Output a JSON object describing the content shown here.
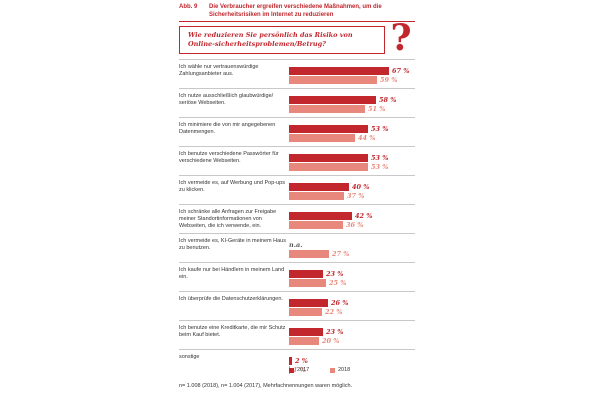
{
  "header": {
    "figure_number": "Abb. 9",
    "title": "Die Verbraucher ergreifen verschiedene Maßnahmen, um die Sicherheitsrisiken im Internet zu reduzieren"
  },
  "question": {
    "text": "Wie reduzieren Sie persönlich das Risiko von Online-sicherheitsproblemen/Betrug?",
    "icon": "question-mark-icon"
  },
  "footnote": "n= 1.008 (2018), n= 1.004 (2017), Mehrfachnennungen waren möglich.",
  "colors": {
    "2017": "#c1272d",
    "2018": "#e8887c",
    "accent": "#c1272d"
  },
  "chart_data": {
    "type": "bar",
    "orientation": "horizontal",
    "categories": [
      "Ich wähle nur vertrauenswürdige Zahlungsanbieter aus.",
      "Ich nutze ausschließlich glaubwürdige/ seriöse Webseiten.",
      "Ich minimiere die von mir angegebenen Datenmengen.",
      "Ich benutze verschiedene Passwörter für verschiedene Webseiten.",
      "Ich vermeide es, auf Werbung und Pop-ups zu klicken.",
      "Ich schränke alle Anfragen zur Freigabe meiner Standortinformationen von Webseiten, die ich verwende, ein.",
      "Ich vermeide es, KI-Geräte in meinem Haus zu benutzen.",
      "Ich kaufe nur bei Händlern in meinem Land ein.",
      "Ich überprüfe die Datenschutzerklärungen.",
      "Ich benutze eine Kreditkarte, die mir Schutz beim Kauf bietet.",
      "sonstige"
    ],
    "series": [
      {
        "name": "2017",
        "values": [
          67,
          58,
          53,
          53,
          40,
          42,
          null,
          23,
          26,
          23,
          2
        ]
      },
      {
        "name": "2018",
        "values": [
          59,
          51,
          44,
          53,
          37,
          36,
          27,
          25,
          22,
          20,
          1
        ]
      }
    ],
    "value_labels": {
      "2017": [
        "67 %",
        "58 %",
        "53 %",
        "53 %",
        "40 %",
        "42 %",
        "n.a.",
        "23 %",
        "26 %",
        "23 %",
        "2 %"
      ],
      "2018": [
        "59 %",
        "51 %",
        "44 %",
        "53 %",
        "37 %",
        "36 %",
        "27 %",
        "25 %",
        "22 %",
        "20 %",
        "1 %"
      ]
    },
    "xlim": [
      0,
      100
    ],
    "legend": {
      "placement": "bottom-right",
      "entries": [
        "2017",
        "2018"
      ]
    },
    "grid": false
  }
}
